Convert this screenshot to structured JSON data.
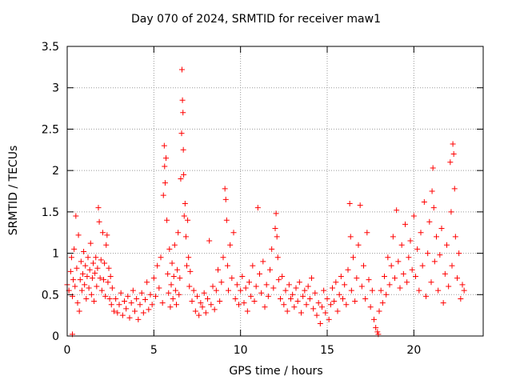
{
  "chart_data": {
    "type": "scatter",
    "title": "Day 070 of 2024, SRMTID for receiver maw1",
    "xlabel": "GPS time / hours",
    "ylabel": "SRMTID / TECUs",
    "xlim": [
      0,
      24
    ],
    "ylim": [
      0,
      3.5
    ],
    "xticks": [
      0,
      5,
      10,
      15,
      20
    ],
    "xtick_labels": [
      "0",
      "5",
      "10",
      "15",
      "20"
    ],
    "yticks": [
      0,
      0.5,
      1,
      1.5,
      2,
      2.5,
      3,
      3.5
    ],
    "ytick_labels": [
      "0",
      "0.5",
      "1",
      "1.5",
      "2",
      "2.5",
      "3",
      "3.5"
    ],
    "grid": true,
    "marker": "plus",
    "color": "#ff0000",
    "series": [
      {
        "name": "SRMTID",
        "points": [
          [
            0.0,
            0.62
          ],
          [
            0.1,
            0.55
          ],
          [
            0.2,
            0.78
          ],
          [
            0.25,
            0.95
          ],
          [
            0.3,
            0.48
          ],
          [
            0.35,
            0.68
          ],
          [
            0.4,
            1.05
          ],
          [
            0.45,
            0.6
          ],
          [
            0.5,
            1.45
          ],
          [
            0.55,
            0.82
          ],
          [
            0.6,
            0.4
          ],
          [
            0.65,
            1.22
          ],
          [
            0.7,
            0.3
          ],
          [
            0.75,
            0.68
          ],
          [
            0.8,
            0.9
          ],
          [
            0.85,
            0.55
          ],
          [
            0.9,
            0.75
          ],
          [
            0.95,
            1.02
          ],
          [
            1.0,
            0.62
          ],
          [
            1.05,
            0.85
          ],
          [
            1.1,
            0.45
          ],
          [
            1.15,
            0.72
          ],
          [
            1.2,
            0.95
          ],
          [
            1.25,
            0.58
          ],
          [
            1.3,
            0.8
          ],
          [
            1.35,
            1.12
          ],
          [
            1.4,
            0.5
          ],
          [
            1.45,
            0.7
          ],
          [
            1.5,
            0.88
          ],
          [
            1.55,
            0.42
          ],
          [
            1.6,
            0.76
          ],
          [
            1.65,
            0.95
          ],
          [
            1.7,
            0.6
          ],
          [
            1.75,
            0.82
          ],
          [
            1.8,
            1.55
          ],
          [
            1.85,
            1.38
          ],
          [
            1.9,
            0.7
          ],
          [
            1.95,
            0.92
          ],
          [
            2.0,
            0.55
          ],
          [
            2.05,
            1.25
          ],
          [
            2.1,
            0.68
          ],
          [
            2.15,
            0.88
          ],
          [
            2.2,
            0.48
          ],
          [
            2.25,
            1.1
          ],
          [
            2.3,
            1.22
          ],
          [
            2.35,
            0.65
          ],
          [
            2.4,
            0.82
          ],
          [
            2.45,
            0.45
          ],
          [
            2.5,
            0.72
          ],
          [
            2.55,
            0.38
          ],
          [
            2.6,
            0.58
          ],
          [
            2.7,
            0.3
          ],
          [
            2.8,
            0.45
          ],
          [
            2.9,
            0.28
          ],
          [
            3.0,
            0.38
          ],
          [
            3.1,
            0.52
          ],
          [
            3.2,
            0.25
          ],
          [
            3.3,
            0.42
          ],
          [
            3.4,
            0.33
          ],
          [
            3.5,
            0.48
          ],
          [
            3.6,
            0.22
          ],
          [
            3.7,
            0.4
          ],
          [
            3.8,
            0.55
          ],
          [
            3.9,
            0.3
          ],
          [
            4.0,
            0.45
          ],
          [
            4.1,
            0.2
          ],
          [
            4.2,
            0.38
          ],
          [
            4.3,
            0.52
          ],
          [
            4.4,
            0.28
          ],
          [
            4.5,
            0.44
          ],
          [
            4.6,
            0.65
          ],
          [
            4.7,
            0.32
          ],
          [
            4.8,
            0.5
          ],
          [
            4.9,
            0.38
          ],
          [
            5.0,
            0.7
          ],
          [
            5.1,
            0.48
          ],
          [
            5.2,
            0.85
          ],
          [
            5.3,
            0.58
          ],
          [
            5.4,
            0.95
          ],
          [
            5.5,
            0.4
          ],
          [
            5.55,
            1.7
          ],
          [
            5.6,
            2.3
          ],
          [
            5.62,
            2.05
          ],
          [
            5.65,
            1.85
          ],
          [
            5.7,
            2.15
          ],
          [
            5.75,
            1.4
          ],
          [
            5.8,
            0.75
          ],
          [
            5.85,
            0.52
          ],
          [
            5.9,
            1.05
          ],
          [
            5.95,
            0.35
          ],
          [
            6.0,
            0.62
          ],
          [
            6.05,
            0.88
          ],
          [
            6.1,
            0.45
          ],
          [
            6.15,
            0.72
          ],
          [
            6.2,
            1.1
          ],
          [
            6.25,
            0.55
          ],
          [
            6.3,
            0.38
          ],
          [
            6.35,
            0.8
          ],
          [
            6.4,
            1.25
          ],
          [
            6.45,
            0.5
          ],
          [
            6.5,
            0.7
          ],
          [
            6.55,
            1.9
          ],
          [
            6.6,
            2.45
          ],
          [
            6.62,
            3.22
          ],
          [
            6.65,
            2.85
          ],
          [
            6.68,
            2.7
          ],
          [
            6.7,
            2.25
          ],
          [
            6.72,
            1.95
          ],
          [
            6.75,
            1.45
          ],
          [
            6.8,
            1.6
          ],
          [
            6.85,
            1.2
          ],
          [
            6.9,
            0.85
          ],
          [
            6.95,
            1.4
          ],
          [
            7.0,
            0.95
          ],
          [
            7.05,
            0.6
          ],
          [
            7.1,
            0.78
          ],
          [
            7.2,
            0.42
          ],
          [
            7.3,
            0.55
          ],
          [
            7.4,
            0.3
          ],
          [
            7.5,
            0.48
          ],
          [
            7.6,
            0.25
          ],
          [
            7.7,
            0.4
          ],
          [
            7.8,
            0.35
          ],
          [
            7.9,
            0.52
          ],
          [
            8.0,
            0.28
          ],
          [
            8.1,
            0.45
          ],
          [
            8.2,
            1.15
          ],
          [
            8.3,
            0.38
          ],
          [
            8.4,
            0.6
          ],
          [
            8.5,
            0.32
          ],
          [
            8.6,
            0.55
          ],
          [
            8.7,
            0.8
          ],
          [
            8.8,
            0.42
          ],
          [
            8.9,
            0.65
          ],
          [
            9.0,
            0.95
          ],
          [
            9.1,
            1.78
          ],
          [
            9.15,
            1.65
          ],
          [
            9.2,
            1.4
          ],
          [
            9.25,
            0.85
          ],
          [
            9.3,
            0.55
          ],
          [
            9.4,
            1.1
          ],
          [
            9.5,
            0.7
          ],
          [
            9.6,
            1.25
          ],
          [
            9.7,
            0.45
          ],
          [
            9.8,
            0.62
          ],
          [
            9.9,
            0.38
          ],
          [
            10.0,
            0.55
          ],
          [
            10.1,
            0.72
          ],
          [
            10.2,
            0.4
          ],
          [
            10.3,
            0.58
          ],
          [
            10.4,
            0.3
          ],
          [
            10.5,
            0.65
          ],
          [
            10.6,
            0.48
          ],
          [
            10.7,
            0.85
          ],
          [
            10.8,
            0.42
          ],
          [
            10.9,
            0.6
          ],
          [
            11.0,
            1.55
          ],
          [
            11.1,
            0.75
          ],
          [
            11.2,
            0.52
          ],
          [
            11.3,
            0.9
          ],
          [
            11.4,
            0.35
          ],
          [
            11.5,
            0.62
          ],
          [
            11.6,
            0.48
          ],
          [
            11.7,
            0.8
          ],
          [
            11.8,
            1.05
          ],
          [
            11.9,
            0.58
          ],
          [
            12.0,
            1.3
          ],
          [
            12.05,
            1.48
          ],
          [
            12.1,
            1.2
          ],
          [
            12.15,
            0.95
          ],
          [
            12.2,
            0.68
          ],
          [
            12.3,
            0.45
          ],
          [
            12.4,
            0.72
          ],
          [
            12.5,
            0.38
          ],
          [
            12.6,
            0.55
          ],
          [
            12.7,
            0.3
          ],
          [
            12.8,
            0.62
          ],
          [
            12.9,
            0.45
          ],
          [
            13.0,
            0.5
          ],
          [
            13.1,
            0.35
          ],
          [
            13.2,
            0.58
          ],
          [
            13.3,
            0.42
          ],
          [
            13.4,
            0.65
          ],
          [
            13.5,
            0.28
          ],
          [
            13.6,
            0.48
          ],
          [
            13.7,
            0.55
          ],
          [
            13.8,
            0.38
          ],
          [
            13.9,
            0.6
          ],
          [
            14.0,
            0.45
          ],
          [
            14.1,
            0.7
          ],
          [
            14.2,
            0.33
          ],
          [
            14.3,
            0.52
          ],
          [
            14.4,
            0.25
          ],
          [
            14.5,
            0.4
          ],
          [
            14.6,
            0.15
          ],
          [
            14.7,
            0.35
          ],
          [
            14.8,
            0.55
          ],
          [
            14.9,
            0.28
          ],
          [
            15.0,
            0.45
          ],
          [
            15.1,
            0.2
          ],
          [
            15.2,
            0.38
          ],
          [
            15.3,
            0.58
          ],
          [
            15.4,
            0.42
          ],
          [
            15.5,
            0.65
          ],
          [
            15.6,
            0.3
          ],
          [
            15.7,
            0.5
          ],
          [
            15.8,
            0.72
          ],
          [
            15.9,
            0.45
          ],
          [
            16.0,
            0.62
          ],
          [
            16.1,
            0.38
          ],
          [
            16.2,
            0.8
          ],
          [
            16.3,
            1.6
          ],
          [
            16.35,
            1.2
          ],
          [
            16.4,
            0.55
          ],
          [
            16.5,
            0.95
          ],
          [
            16.6,
            0.42
          ],
          [
            16.7,
            0.7
          ],
          [
            16.8,
            1.1
          ],
          [
            16.9,
            1.58
          ],
          [
            17.0,
            0.6
          ],
          [
            17.1,
            0.85
          ],
          [
            17.2,
            0.45
          ],
          [
            17.3,
            1.25
          ],
          [
            17.4,
            0.68
          ],
          [
            17.5,
            0.35
          ],
          [
            17.6,
            0.55
          ],
          [
            17.7,
            0.2
          ],
          [
            17.8,
            0.1
          ],
          [
            17.9,
            0.05
          ],
          [
            18.0,
            0.3
          ],
          [
            18.1,
            0.55
          ],
          [
            18.2,
            0.4
          ],
          [
            18.3,
            0.72
          ],
          [
            18.4,
            0.5
          ],
          [
            18.5,
            0.95
          ],
          [
            18.6,
            0.62
          ],
          [
            18.7,
            0.85
          ],
          [
            18.8,
            1.2
          ],
          [
            18.9,
            0.7
          ],
          [
            19.0,
            1.52
          ],
          [
            19.1,
            0.9
          ],
          [
            19.2,
            0.58
          ],
          [
            19.3,
            1.1
          ],
          [
            19.4,
            0.75
          ],
          [
            19.5,
            1.35
          ],
          [
            19.6,
            0.65
          ],
          [
            19.7,
            0.95
          ],
          [
            19.8,
            1.15
          ],
          [
            19.9,
            0.8
          ],
          [
            20.0,
            1.45
          ],
          [
            20.1,
            0.72
          ],
          [
            20.2,
            1.05
          ],
          [
            20.3,
            0.55
          ],
          [
            20.4,
            1.25
          ],
          [
            20.5,
            0.85
          ],
          [
            20.6,
            1.62
          ],
          [
            20.7,
            0.48
          ],
          [
            20.8,
            1.0
          ],
          [
            20.9,
            1.38
          ],
          [
            21.0,
            0.65
          ],
          [
            21.05,
            1.75
          ],
          [
            21.1,
            2.03
          ],
          [
            21.15,
            1.55
          ],
          [
            21.2,
            0.9
          ],
          [
            21.3,
            1.2
          ],
          [
            21.4,
            0.55
          ],
          [
            21.5,
            0.98
          ],
          [
            21.6,
            1.3
          ],
          [
            21.7,
            0.4
          ],
          [
            21.8,
            0.75
          ],
          [
            21.9,
            1.1
          ],
          [
            22.0,
            0.6
          ],
          [
            22.1,
            2.1
          ],
          [
            22.15,
            1.5
          ],
          [
            22.2,
            0.85
          ],
          [
            22.25,
            2.32
          ],
          [
            22.3,
            2.2
          ],
          [
            22.35,
            1.78
          ],
          [
            22.4,
            1.2
          ],
          [
            22.5,
            0.7
          ],
          [
            22.6,
            1.0
          ],
          [
            22.7,
            0.45
          ],
          [
            22.8,
            0.62
          ],
          [
            22.9,
            0.55
          ],
          [
            0.3,
            0.02
          ],
          [
            17.95,
            0.02
          ]
        ]
      }
    ]
  }
}
